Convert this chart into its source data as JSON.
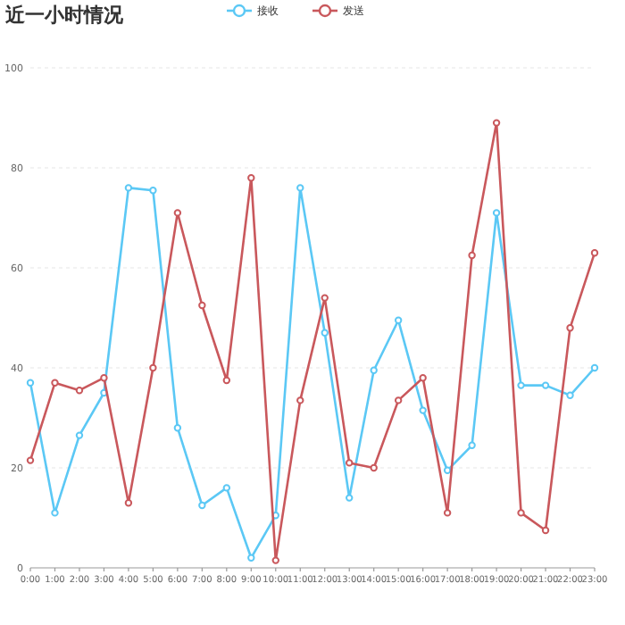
{
  "chart_data": {
    "type": "line",
    "title": "近一小时情况",
    "categories": [
      "0:00",
      "1:00",
      "2:00",
      "3:00",
      "4:00",
      "5:00",
      "6:00",
      "7:00",
      "8:00",
      "9:00",
      "10:00",
      "11:00",
      "12:00",
      "13:00",
      "14:00",
      "15:00",
      "16:00",
      "17:00",
      "18:00",
      "19:00",
      "20:00",
      "21:00",
      "22:00",
      "23:00"
    ],
    "series": [
      {
        "name": "接收",
        "color": "#5bc8f5",
        "values": [
          37,
          11,
          26.5,
          35,
          76,
          75.5,
          28,
          12.5,
          16,
          2,
          10.5,
          76,
          47,
          14,
          39.5,
          49.5,
          31.5,
          19.5,
          24.5,
          71,
          36.5,
          36.5,
          34.5,
          40
        ]
      },
      {
        "name": "发送",
        "color": "#c9585c",
        "values": [
          21.5,
          37,
          35.5,
          38,
          13,
          40,
          71,
          52.5,
          37.5,
          78,
          1.5,
          33.5,
          54,
          21,
          20,
          33.5,
          38,
          11,
          62.5,
          89,
          11,
          7.5,
          48,
          63
        ]
      }
    ],
    "ylim": [
      0,
      100
    ],
    "yticks": [
      0,
      20,
      40,
      60,
      80,
      100
    ],
    "grid": "y",
    "legend": "top",
    "marker": "circle",
    "line_style": "solid"
  }
}
